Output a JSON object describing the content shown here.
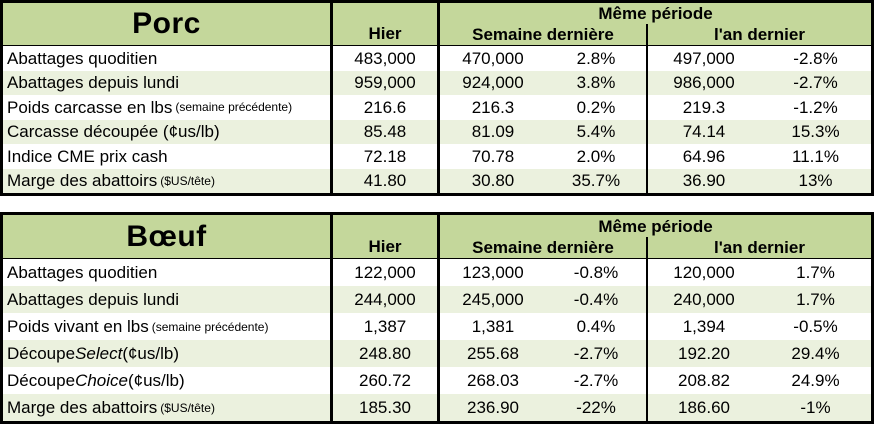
{
  "colors": {
    "header_green": "#c4d79b",
    "row_alt_green": "#ebf1de",
    "row_white": "#ffffff",
    "border_black": "#000000"
  },
  "tables": [
    {
      "title": "Porc",
      "headers": {
        "hier": "Hier",
        "meme_periode": "Même période",
        "semaine_derniere": "Semaine dernière",
        "an_dernier": "l'an dernier"
      },
      "rows": [
        {
          "label": "Abattages quoditien",
          "hier": "483,000",
          "sd": "470,000",
          "sd_pct": "2.8%",
          "ad": "497,000",
          "ad_pct": "-2.8%"
        },
        {
          "label": "Abattages depuis lundi",
          "hier": "959,000",
          "sd": "924,000",
          "sd_pct": "3.8%",
          "ad": "986,000",
          "ad_pct": "-2.7%"
        },
        {
          "label": "Poids carcasse en lbs",
          "note": "(semaine précédente)",
          "hier": "216.6",
          "sd": "216.3",
          "sd_pct": "0.2%",
          "ad": "219.3",
          "ad_pct": "-1.2%"
        },
        {
          "label": "Carcasse découpée (¢us/lb)",
          "hier": "85.48",
          "sd": "81.09",
          "sd_pct": "5.4%",
          "ad": "74.14",
          "ad_pct": "15.3%"
        },
        {
          "label": "Indice CME prix cash",
          "hier": "72.18",
          "sd": "70.78",
          "sd_pct": "2.0%",
          "ad": "64.96",
          "ad_pct": "11.1%"
        },
        {
          "label": "Marge des abattoirs",
          "note": "($US/tête)",
          "hier": "41.80",
          "sd": "30.80",
          "sd_pct": "35.7%",
          "ad": "36.90",
          "ad_pct": "13%"
        }
      ]
    },
    {
      "title": "Bœuf",
      "headers": {
        "hier": "Hier",
        "meme_periode": "Même période",
        "semaine_derniere": "Semaine dernière",
        "an_dernier": "l'an dernier"
      },
      "rows": [
        {
          "label": "Abattages quoditien",
          "hier": "122,000",
          "sd": "123,000",
          "sd_pct": "-0.8%",
          "ad": "120,000",
          "ad_pct": "1.7%"
        },
        {
          "label": "Abattages depuis lundi",
          "hier": "244,000",
          "sd": "245,000",
          "sd_pct": "-0.4%",
          "ad": "240,000",
          "ad_pct": "1.7%"
        },
        {
          "label": "Poids vivant en lbs",
          "note": "(semaine précédente)",
          "hier": "1,387",
          "sd": "1,381",
          "sd_pct": "0.4%",
          "ad": "1,394",
          "ad_pct": "-0.5%"
        },
        {
          "label": "Découpe ",
          "label_italic": "Select",
          "label_rest": " (¢us/lb)",
          "hier": "248.80",
          "sd": "255.68",
          "sd_pct": "-2.7%",
          "ad": "192.20",
          "ad_pct": "29.4%"
        },
        {
          "label": "Découpe ",
          "label_italic": "Choice",
          "label_rest": " (¢us/lb)",
          "hier": "260.72",
          "sd": "268.03",
          "sd_pct": "-2.7%",
          "ad": "208.82",
          "ad_pct": "24.9%"
        },
        {
          "label": "Marge des abattoirs",
          "note": "($US/tête)",
          "hier": "185.30",
          "sd": "236.90",
          "sd_pct": "-22%",
          "ad": "186.60",
          "ad_pct": "-1%"
        }
      ]
    }
  ],
  "chart_data": [
    {
      "type": "table",
      "title": "Porc",
      "columns": [
        "",
        "Hier",
        "Semaine dernière",
        "%",
        "l'an dernier",
        "%"
      ],
      "rows": [
        [
          "Abattages quoditien",
          "483,000",
          "470,000",
          "2.8%",
          "497,000",
          "-2.8%"
        ],
        [
          "Abattages depuis lundi",
          "959,000",
          "924,000",
          "3.8%",
          "986,000",
          "-2.7%"
        ],
        [
          "Poids carcasse en lbs (semaine précédente)",
          "216.6",
          "216.3",
          "0.2%",
          "219.3",
          "-1.2%"
        ],
        [
          "Carcasse découpée (¢us/lb)",
          "85.48",
          "81.09",
          "5.4%",
          "74.14",
          "15.3%"
        ],
        [
          "Indice CME prix cash",
          "72.18",
          "70.78",
          "2.0%",
          "64.96",
          "11.1%"
        ],
        [
          "Marge des abattoirs ($US/tête)",
          "41.80",
          "30.80",
          "35.7%",
          "36.90",
          "13%"
        ]
      ]
    },
    {
      "type": "table",
      "title": "Bœuf",
      "columns": [
        "",
        "Hier",
        "Semaine dernière",
        "%",
        "l'an dernier",
        "%"
      ],
      "rows": [
        [
          "Abattages quoditien",
          "122,000",
          "123,000",
          "-0.8%",
          "120,000",
          "1.7%"
        ],
        [
          "Abattages depuis lundi",
          "244,000",
          "245,000",
          "-0.4%",
          "240,000",
          "1.7%"
        ],
        [
          "Poids vivant en lbs (semaine précédente)",
          "1,387",
          "1,381",
          "0.4%",
          "1,394",
          "-0.5%"
        ],
        [
          "Découpe Select (¢us/lb)",
          "248.80",
          "255.68",
          "-2.7%",
          "192.20",
          "29.4%"
        ],
        [
          "Découpe Choice (¢us/lb)",
          "260.72",
          "268.03",
          "-2.7%",
          "208.82",
          "24.9%"
        ],
        [
          "Marge des abattoirs ($US/tête)",
          "185.30",
          "236.90",
          "-22%",
          "186.60",
          "-1%"
        ]
      ]
    }
  ]
}
